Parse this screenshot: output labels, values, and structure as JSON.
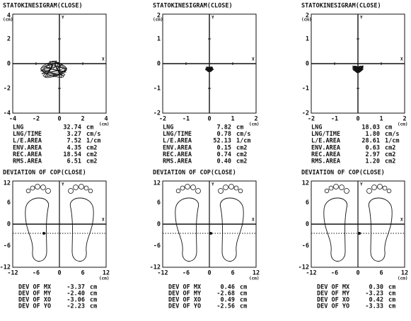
{
  "panels": [
    {
      "statokinesigram": {
        "title": "STATOKINESIGRAM(CLOSE)",
        "y_unit": "(cm)",
        "x_unit": "(cm)",
        "y_label": "Y",
        "x_label": "X",
        "yticks": [
          "4",
          "2",
          "0",
          "-2",
          "-4"
        ],
        "xticks": [
          "-4",
          "-2",
          "0",
          "2",
          "4"
        ]
      },
      "metrics": [
        [
          "LNG",
          "32.74",
          "cm"
        ],
        [
          "LNG/TIME",
          "3.27",
          "cm/s"
        ],
        [
          "L/E.AREA",
          "7.52",
          "1/cm"
        ],
        [
          "ENV.AREA",
          "4.35",
          "cm2"
        ],
        [
          "REC.AREA",
          "18.54",
          "cm2"
        ],
        [
          "RMS.AREA",
          "6.51",
          "cm2"
        ]
      ],
      "deviation": {
        "title": "DEVIATION OF COP(CLOSE)",
        "y_label": "Y",
        "x_label": "X",
        "x_unit": "(cm)",
        "yticks": [
          "12",
          "6",
          "0",
          "-6",
          "-12"
        ],
        "xticks": [
          "-12",
          "-6",
          "0",
          "6",
          "12"
        ]
      },
      "dev_rows": [
        [
          "DEV OF MX",
          "-3.37",
          "cm"
        ],
        [
          "DEV OF MY",
          "-2.40",
          "cm"
        ],
        [
          "DEV OF XO",
          "-3.06",
          "cm"
        ],
        [
          "DEV OF YO",
          "-2.23",
          "cm"
        ]
      ]
    },
    {
      "statokinesigram": {
        "title": "STATOKINESIGRAM(CLOSE)",
        "y_unit": "(cm)",
        "x_unit": "(cm)",
        "y_label": "Y",
        "x_label": "X",
        "yticks": [
          "2",
          "1",
          "0",
          "-1",
          "-2"
        ],
        "xticks": [
          "-2",
          "-1",
          "0",
          "1",
          "2"
        ]
      },
      "metrics": [
        [
          "LNG",
          "7.82",
          "cm"
        ],
        [
          "LNG/TIME",
          "0.78",
          "cm/s"
        ],
        [
          "L/E.AREA",
          "52.13",
          "1/cm"
        ],
        [
          "ENV.AREA",
          "0.15",
          "cm2"
        ],
        [
          "REC.AREA",
          "0.74",
          "cm2"
        ],
        [
          "RMS.AREA",
          "0.40",
          "cm2"
        ]
      ],
      "deviation": {
        "title": "DEVIATION OF COP(CLOSE)",
        "y_label": "Y",
        "x_label": "X",
        "x_unit": "(cm)",
        "yticks": [
          "12",
          "6",
          "0",
          "-6",
          "-12"
        ],
        "xticks": [
          "-12",
          "-6",
          "0",
          "6",
          "12"
        ]
      },
      "dev_rows": [
        [
          "DEV OF MX",
          "0.46",
          "cm"
        ],
        [
          "DEV OF MY",
          "-2.68",
          "cm"
        ],
        [
          "DEV OF XO",
          "0.49",
          "cm"
        ],
        [
          "DEV OF YO",
          "-2.56",
          "cm"
        ]
      ]
    },
    {
      "statokinesigram": {
        "title": "STATOKINESIGRAM(CLOSE)",
        "y_unit": "(cm)",
        "x_unit": "(cm)",
        "y_label": "Y",
        "x_label": "X",
        "yticks": [
          "2",
          "1",
          "0",
          "-1",
          "-2"
        ],
        "xticks": [
          "-2",
          "-1",
          "0",
          "1",
          "2"
        ]
      },
      "metrics": [
        [
          "LNG",
          "18.03",
          "cm"
        ],
        [
          "LNG/TIME",
          "1.80",
          "cm/s"
        ],
        [
          "L/E.AREA",
          "28.61",
          "1/cm"
        ],
        [
          "ENV.AREA",
          "0.63",
          "cm2"
        ],
        [
          "REC.AREA",
          "2.97",
          "cm2"
        ],
        [
          "RMS.AREA",
          "1.20",
          "cm2"
        ]
      ],
      "deviation": {
        "title": "DEVIATION OF COP(CLOSE)",
        "y_label": "Y",
        "x_label": "X",
        "x_unit": "(cm)",
        "yticks": [
          "12",
          "6",
          "0",
          "-6",
          "-12"
        ],
        "xticks": [
          "-12",
          "-6",
          "0",
          "6",
          "12"
        ]
      },
      "dev_rows": [
        [
          "DEV OF MX",
          "0.30",
          "cm"
        ],
        [
          "DEV OF MY",
          "-3.23",
          "cm"
        ],
        [
          "DEV OF XO",
          "0.42",
          "cm"
        ],
        [
          "DEV OF YO",
          "-3.33",
          "cm"
        ]
      ]
    }
  ]
}
